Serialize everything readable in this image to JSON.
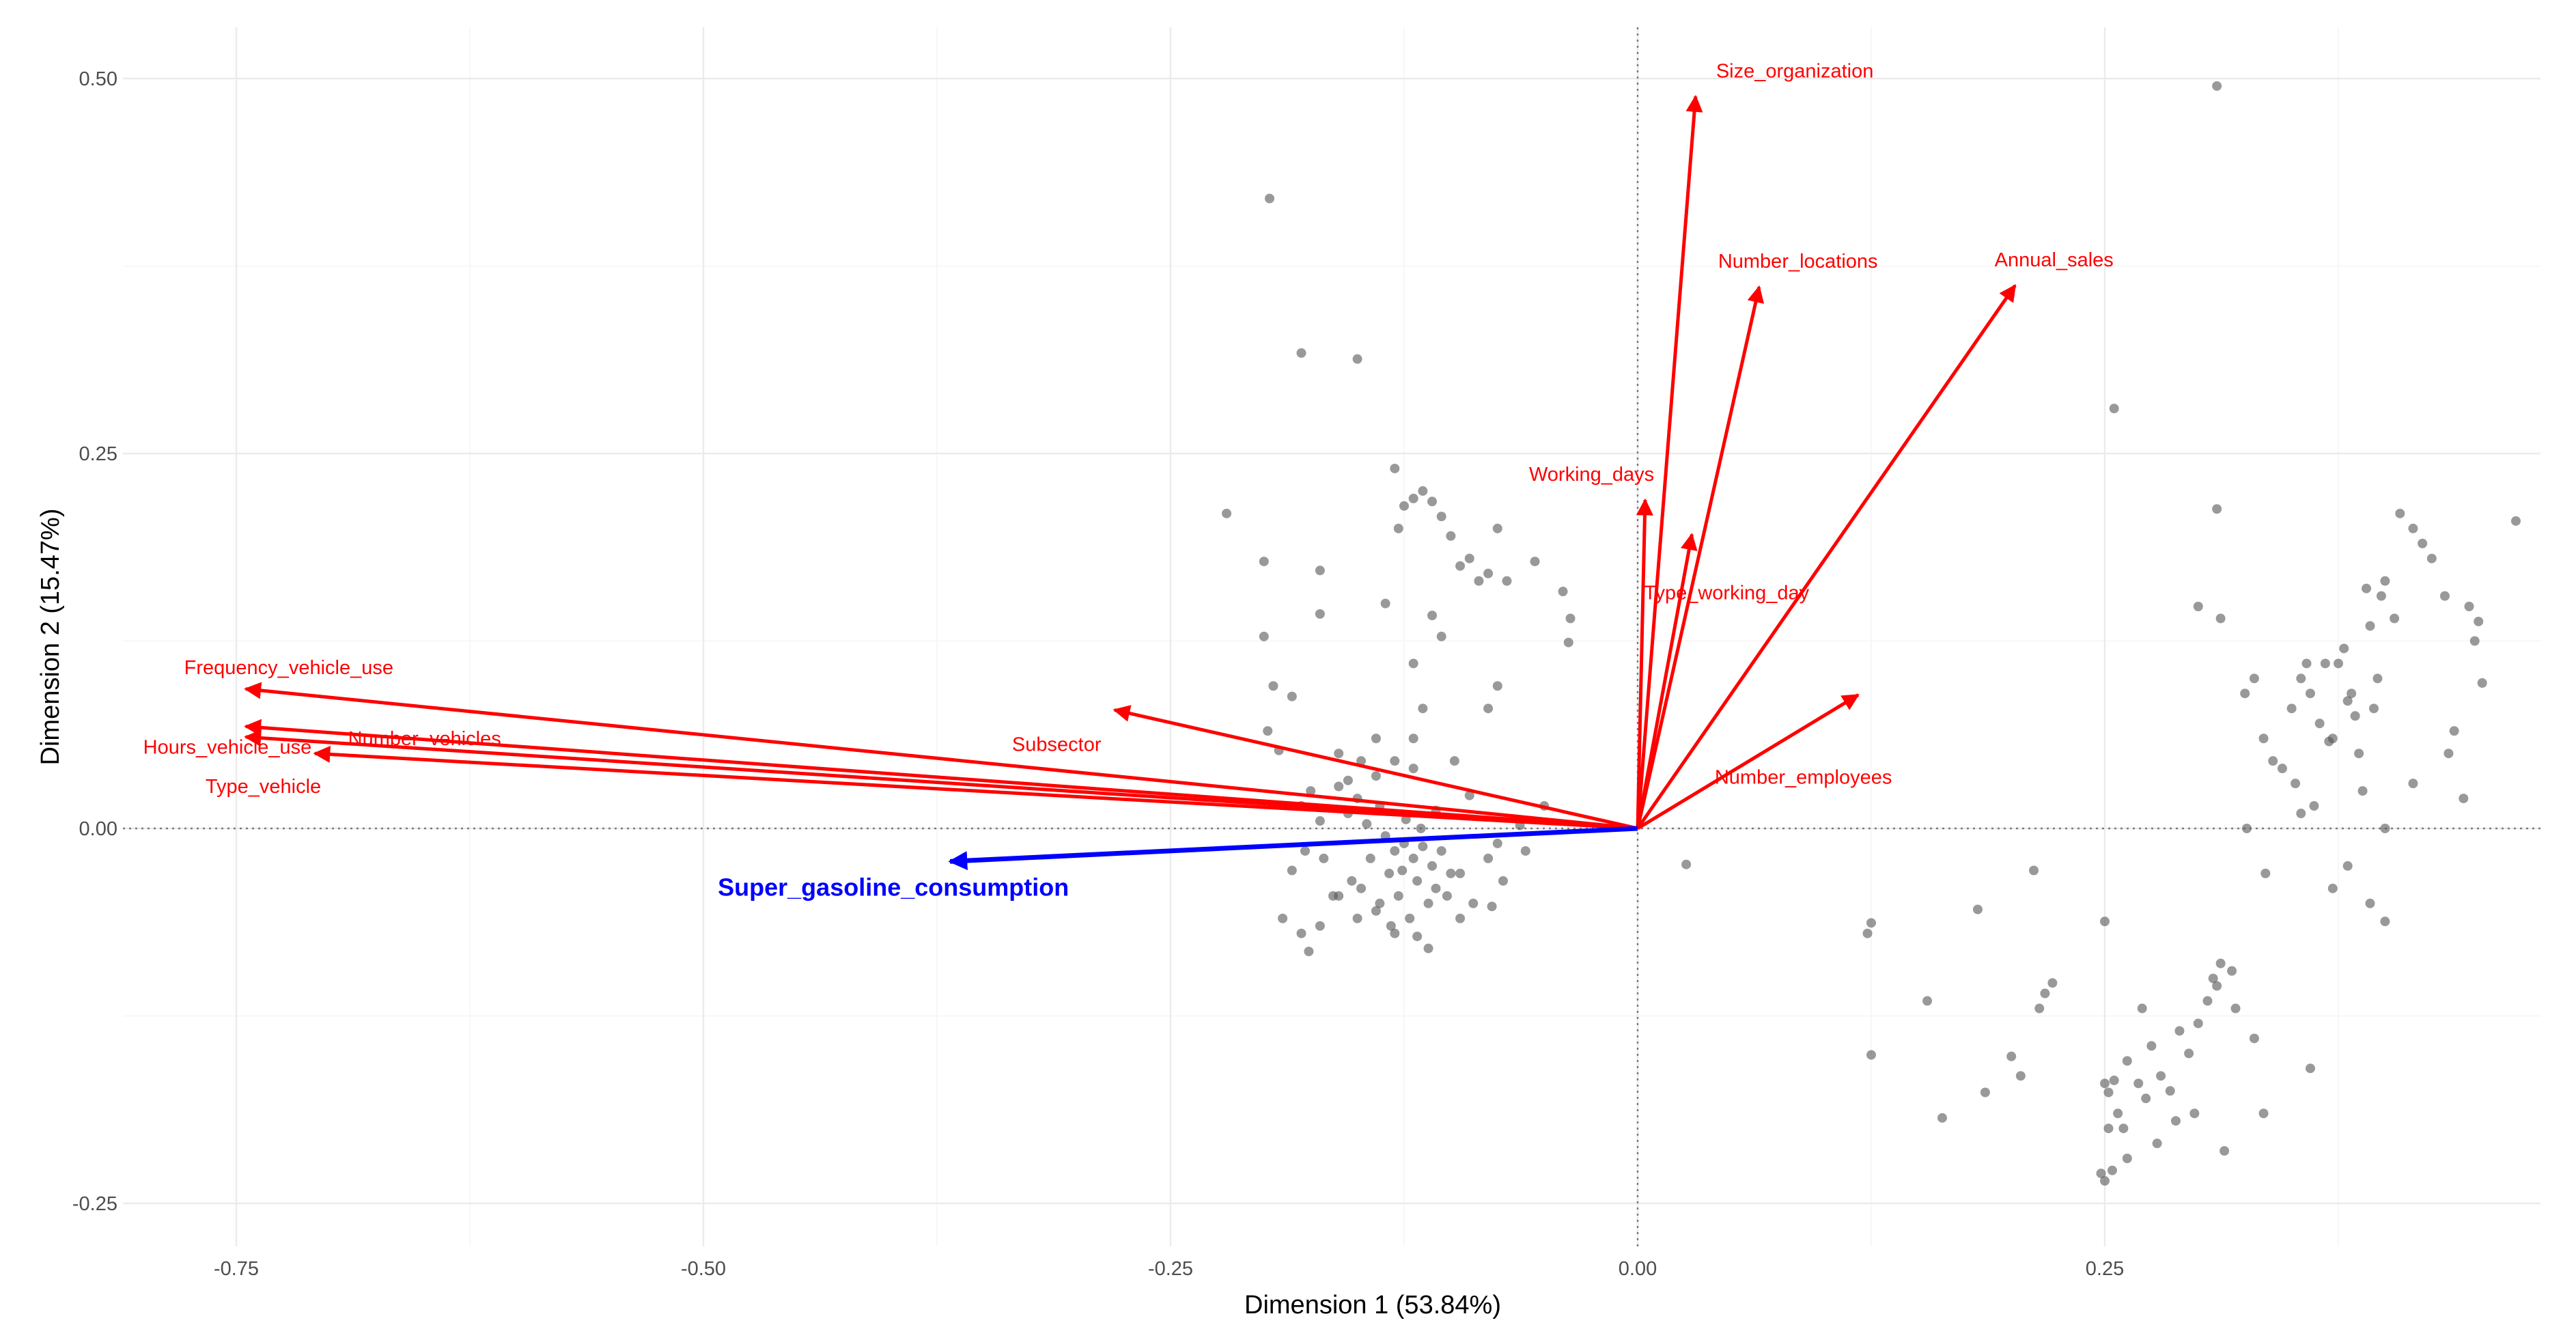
{
  "chart_data": {
    "type": "scatter",
    "subtype": "pca-biplot",
    "title": "",
    "xlabel": "Dimension 1 (53.84%)",
    "ylabel": "Dimension 2 (15.47%)",
    "xlim": [
      -0.8,
      0.46
    ],
    "ylim": [
      -0.26,
      0.52
    ],
    "x_ticks": [
      -0.75,
      -0.5,
      -0.25,
      0.0,
      0.25
    ],
    "x_tick_labels": [
      "-0.75",
      "-0.50",
      "-0.25",
      "0.00",
      "0.25"
    ],
    "y_ticks": [
      -0.25,
      0.0,
      0.25,
      0.5
    ],
    "y_tick_labels": [
      "-0.25",
      "0.00",
      "0.25",
      "0.50"
    ],
    "grid": true,
    "colors": {
      "variable": "#ff0000",
      "supplementary": "#0000ff",
      "points": "#555555"
    },
    "variables": [
      {
        "name": "Size_organization",
        "x": 0.031,
        "y": 0.488
      },
      {
        "name": "Number_locations",
        "x": 0.065,
        "y": 0.361
      },
      {
        "name": "Annual_sales",
        "x": 0.202,
        "y": 0.362
      },
      {
        "name": "Working_days",
        "x": 0.004,
        "y": 0.219
      },
      {
        "name": "Type_working_day",
        "x": 0.029,
        "y": 0.196
      },
      {
        "name": "Number_employees",
        "x": 0.118,
        "y": 0.089
      },
      {
        "name": "Subsector",
        "x": -0.28,
        "y": 0.079
      },
      {
        "name": "Frequency_vehicle_use",
        "x": -0.745,
        "y": 0.093
      },
      {
        "name": "Hours_vehicle_use",
        "x": -0.745,
        "y": 0.068
      },
      {
        "name": "Number_vehicles",
        "x": -0.745,
        "y": 0.061
      },
      {
        "name": "Type_vehicle",
        "x": -0.708,
        "y": 0.05
      }
    ],
    "supplementary_variables": [
      {
        "name": "Super_gasoline_consumption",
        "x": -0.368,
        "y": -0.022
      }
    ],
    "points": [
      [
        -0.197,
        0.42
      ],
      [
        -0.18,
        0.317
      ],
      [
        -0.15,
        0.313
      ],
      [
        0.31,
        0.495
      ],
      [
        0.255,
        0.28
      ],
      [
        -0.22,
        0.21
      ],
      [
        -0.2,
        0.178
      ],
      [
        -0.2,
        0.128
      ],
      [
        -0.195,
        0.095
      ],
      [
        -0.198,
        0.065
      ],
      [
        -0.192,
        0.052
      ],
      [
        -0.185,
        0.088
      ],
      [
        -0.17,
        0.172
      ],
      [
        -0.17,
        0.143
      ],
      [
        -0.16,
        0.05
      ],
      [
        -0.155,
        0.032
      ],
      [
        -0.148,
        0.045
      ],
      [
        -0.14,
        0.06
      ],
      [
        -0.135,
        0.15
      ],
      [
        -0.13,
        0.24
      ],
      [
        -0.12,
        0.22
      ],
      [
        -0.115,
        0.225
      ],
      [
        -0.125,
        0.215
      ],
      [
        -0.11,
        0.218
      ],
      [
        -0.105,
        0.208
      ],
      [
        -0.128,
        0.2
      ],
      [
        -0.1,
        0.195
      ],
      [
        -0.095,
        0.175
      ],
      [
        -0.09,
        0.18
      ],
      [
        -0.085,
        0.165
      ],
      [
        -0.08,
        0.17
      ],
      [
        -0.075,
        0.2
      ],
      [
        -0.07,
        0.165
      ],
      [
        -0.11,
        0.142
      ],
      [
        -0.105,
        0.128
      ],
      [
        -0.12,
        0.11
      ],
      [
        -0.075,
        0.095
      ],
      [
        -0.08,
        0.08
      ],
      [
        -0.055,
        0.178
      ],
      [
        -0.04,
        0.158
      ],
      [
        -0.036,
        0.14
      ],
      [
        -0.037,
        0.124
      ],
      [
        -0.115,
        0.08
      ],
      [
        -0.12,
        0.06
      ],
      [
        -0.13,
        0.045
      ],
      [
        -0.14,
        0.035
      ],
      [
        -0.12,
        0.04
      ],
      [
        -0.098,
        0.045
      ],
      [
        -0.09,
        0.022
      ],
      [
        -0.15,
        0.02
      ],
      [
        -0.16,
        0.028
      ],
      [
        -0.175,
        0.025
      ],
      [
        -0.18,
        0.015
      ],
      [
        -0.17,
        0.005
      ],
      [
        -0.155,
        0.01
      ],
      [
        -0.145,
        0.003
      ],
      [
        -0.135,
        -0.005
      ],
      [
        -0.13,
        -0.015
      ],
      [
        -0.125,
        -0.01
      ],
      [
        -0.12,
        -0.02
      ],
      [
        -0.115,
        -0.012
      ],
      [
        -0.11,
        -0.025
      ],
      [
        -0.105,
        -0.015
      ],
      [
        -0.1,
        -0.03
      ],
      [
        -0.108,
        -0.04
      ],
      [
        -0.118,
        -0.035
      ],
      [
        -0.128,
        -0.045
      ],
      [
        -0.138,
        -0.05
      ],
      [
        -0.133,
        -0.03
      ],
      [
        -0.143,
        -0.02
      ],
      [
        -0.153,
        -0.035
      ],
      [
        -0.163,
        -0.045
      ],
      [
        -0.168,
        -0.02
      ],
      [
        -0.178,
        -0.015
      ],
      [
        -0.185,
        -0.028
      ],
      [
        -0.19,
        -0.06
      ],
      [
        -0.18,
        -0.07
      ],
      [
        -0.17,
        -0.065
      ],
      [
        -0.16,
        -0.045
      ],
      [
        -0.15,
        -0.06
      ],
      [
        -0.14,
        -0.055
      ],
      [
        -0.132,
        -0.065
      ],
      [
        -0.122,
        -0.06
      ],
      [
        -0.118,
        -0.072
      ],
      [
        -0.112,
        -0.05
      ],
      [
        -0.102,
        -0.045
      ],
      [
        -0.095,
        -0.03
      ],
      [
        -0.088,
        -0.05
      ],
      [
        -0.08,
        -0.02
      ],
      [
        -0.075,
        -0.01
      ],
      [
        -0.072,
        -0.035
      ],
      [
        -0.078,
        -0.052
      ],
      [
        -0.06,
        -0.015
      ],
      [
        -0.063,
        0.002
      ],
      [
        -0.05,
        0.015
      ],
      [
        -0.176,
        -0.082
      ],
      [
        -0.112,
        -0.08
      ],
      [
        -0.13,
        -0.07
      ],
      [
        -0.095,
        -0.06
      ],
      [
        -0.148,
        -0.04
      ],
      [
        -0.126,
        -0.028
      ],
      [
        -0.138,
        0.015
      ],
      [
        -0.108,
        0.012
      ],
      [
        -0.116,
        0.0
      ],
      [
        -0.124,
        0.006
      ],
      [
        0.026,
        -0.024
      ],
      [
        0.125,
        -0.063
      ],
      [
        0.123,
        -0.07
      ],
      [
        0.125,
        -0.151
      ],
      [
        0.155,
        -0.115
      ],
      [
        0.163,
        -0.193
      ],
      [
        0.182,
        -0.054
      ],
      [
        0.186,
        -0.176
      ],
      [
        0.2,
        -0.152
      ],
      [
        0.205,
        -0.165
      ],
      [
        0.212,
        -0.028
      ],
      [
        0.215,
        -0.12
      ],
      [
        0.218,
        -0.11
      ],
      [
        0.222,
        -0.103
      ],
      [
        0.25,
        -0.062
      ],
      [
        0.25,
        -0.17
      ],
      [
        0.252,
        -0.176
      ],
      [
        0.252,
        -0.2
      ],
      [
        0.255,
        -0.168
      ],
      [
        0.257,
        -0.19
      ],
      [
        0.26,
        -0.2
      ],
      [
        0.262,
        -0.22
      ],
      [
        0.248,
        -0.23
      ],
      [
        0.25,
        -0.235
      ],
      [
        0.254,
        -0.228
      ],
      [
        0.27,
        -0.12
      ],
      [
        0.275,
        -0.145
      ],
      [
        0.28,
        -0.165
      ],
      [
        0.285,
        -0.175
      ],
      [
        0.29,
        -0.135
      ],
      [
        0.295,
        -0.15
      ],
      [
        0.3,
        -0.13
      ],
      [
        0.305,
        -0.115
      ],
      [
        0.31,
        -0.105
      ],
      [
        0.308,
        -0.1
      ],
      [
        0.312,
        -0.09
      ],
      [
        0.318,
        -0.095
      ],
      [
        0.32,
        -0.12
      ],
      [
        0.288,
        -0.195
      ],
      [
        0.278,
        -0.21
      ],
      [
        0.268,
        -0.17
      ],
      [
        0.262,
        -0.155
      ],
      [
        0.272,
        -0.18
      ],
      [
        0.298,
        -0.19
      ],
      [
        0.314,
        -0.215
      ],
      [
        0.33,
        -0.14
      ],
      [
        0.335,
        -0.19
      ],
      [
        0.36,
        -0.16
      ],
      [
        0.31,
        0.213
      ],
      [
        0.3,
        0.148
      ],
      [
        0.312,
        0.14
      ],
      [
        0.325,
        0.09
      ],
      [
        0.33,
        0.1
      ],
      [
        0.335,
        0.06
      ],
      [
        0.34,
        0.045
      ],
      [
        0.345,
        0.04
      ],
      [
        0.35,
        0.08
      ],
      [
        0.352,
        0.03
      ],
      [
        0.355,
        0.1
      ],
      [
        0.358,
        0.11
      ],
      [
        0.36,
        0.09
      ],
      [
        0.362,
        0.015
      ],
      [
        0.365,
        0.07
      ],
      [
        0.368,
        0.11
      ],
      [
        0.37,
        0.058
      ],
      [
        0.372,
        0.06
      ],
      [
        0.375,
        0.11
      ],
      [
        0.378,
        0.12
      ],
      [
        0.38,
        0.085
      ],
      [
        0.382,
        0.09
      ],
      [
        0.384,
        0.075
      ],
      [
        0.386,
        0.05
      ],
      [
        0.388,
        0.025
      ],
      [
        0.39,
        0.16
      ],
      [
        0.392,
        0.135
      ],
      [
        0.394,
        0.08
      ],
      [
        0.396,
        0.1
      ],
      [
        0.398,
        0.155
      ],
      [
        0.4,
        0.165
      ],
      [
        0.405,
        0.14
      ],
      [
        0.408,
        0.21
      ],
      [
        0.415,
        0.2
      ],
      [
        0.42,
        0.19
      ],
      [
        0.425,
        0.18
      ],
      [
        0.432,
        0.155
      ],
      [
        0.434,
        0.05
      ],
      [
        0.437,
        0.065
      ],
      [
        0.442,
        0.02
      ],
      [
        0.445,
        0.148
      ],
      [
        0.448,
        0.125
      ],
      [
        0.45,
        0.138
      ],
      [
        0.452,
        0.097
      ],
      [
        0.47,
        0.205
      ],
      [
        0.4,
        0.0
      ],
      [
        0.38,
        -0.025
      ],
      [
        0.372,
        -0.04
      ],
      [
        0.392,
        -0.05
      ],
      [
        0.4,
        -0.062
      ],
      [
        0.355,
        0.01
      ],
      [
        0.415,
        0.03
      ],
      [
        0.326,
        0.0
      ],
      [
        0.336,
        -0.03
      ]
    ]
  }
}
